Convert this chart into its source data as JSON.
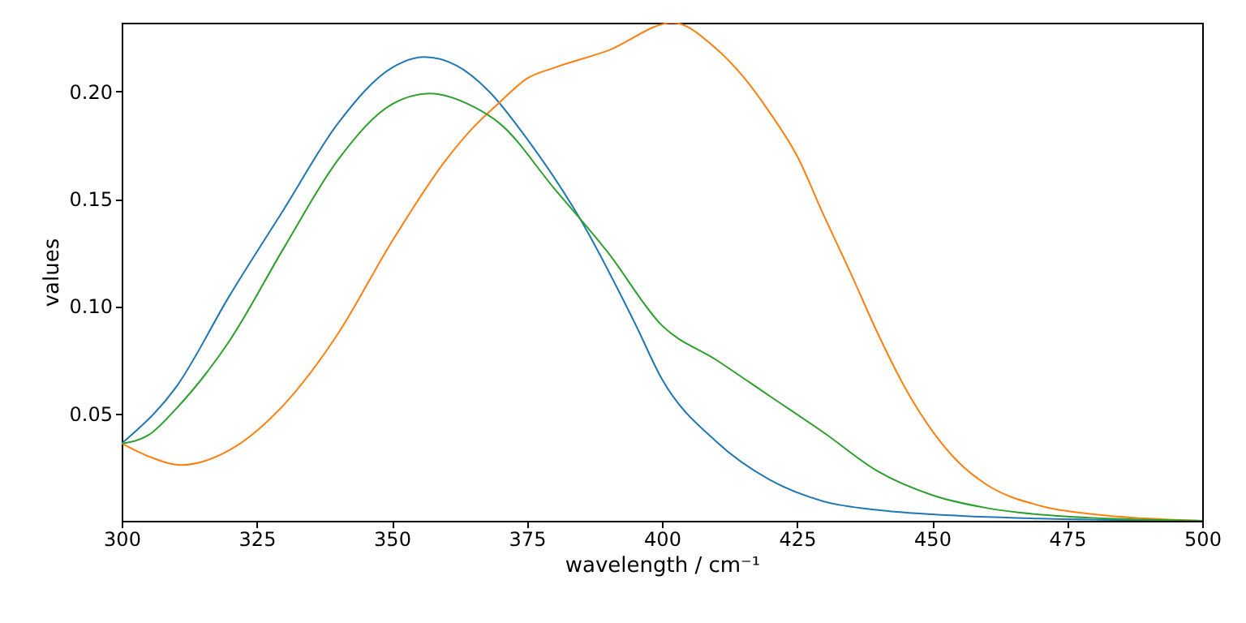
{
  "chart_data": {
    "type": "line",
    "xlabel": "wavelength / cm⁻¹",
    "ylabel": "values",
    "line_style": "solid",
    "xlim": [
      300,
      500
    ],
    "xticks": [
      300,
      325,
      350,
      375,
      400,
      425,
      450,
      475,
      500
    ],
    "ylim": [
      0,
      0.232
    ],
    "yticks": [
      {
        "value": 0.05,
        "label": "0.05"
      },
      {
        "value": 0.1,
        "label": "0.10"
      },
      {
        "value": 0.15,
        "label": "0.15"
      },
      {
        "value": 0.2,
        "label": "0.20"
      }
    ],
    "series": [
      {
        "color": "#1f77b4",
        "x": [
          300,
          310,
          320,
          330,
          340,
          350,
          356,
          362,
          368,
          375,
          385,
          395,
          400,
          410,
          420,
          430,
          440,
          450,
          470,
          500
        ],
        "values": [
          0.036,
          0.062,
          0.105,
          0.145,
          0.185,
          0.211,
          0.216,
          0.212,
          0.2,
          0.178,
          0.14,
          0.092,
          0.066,
          0.037,
          0.019,
          0.009,
          0.005,
          0.003,
          0.001,
          0
        ]
      },
      {
        "color": "#ff7f0e",
        "x": [
          300,
          305,
          311,
          320,
          330,
          340,
          350,
          360,
          365,
          370,
          375,
          380,
          390,
          402,
          410,
          415,
          420,
          425,
          430,
          435,
          440,
          445,
          450,
          455,
          460,
          470,
          480,
          500
        ],
        "values": [
          0.036,
          0.03,
          0.026,
          0.033,
          0.054,
          0.087,
          0.13,
          0.168,
          0.183,
          0.195,
          0.206,
          0.211,
          0.219,
          0.232,
          0.22,
          0.207,
          0.19,
          0.17,
          0.142,
          0.115,
          0.087,
          0.062,
          0.042,
          0.027,
          0.017,
          0.007,
          0.003,
          0
        ]
      },
      {
        "color": "#2ca02c",
        "x": [
          300,
          305,
          310,
          320,
          330,
          340,
          350,
          357,
          365,
          370,
          380,
          390,
          400,
          410,
          420,
          430,
          440,
          450,
          460,
          475,
          500
        ],
        "values": [
          0.036,
          0.04,
          0.052,
          0.084,
          0.127,
          0.168,
          0.194,
          0.199,
          0.193,
          0.185,
          0.155,
          0.125,
          0.091,
          0.075,
          0.058,
          0.041,
          0.023,
          0.012,
          0.006,
          0.002,
          0
        ]
      }
    ]
  }
}
